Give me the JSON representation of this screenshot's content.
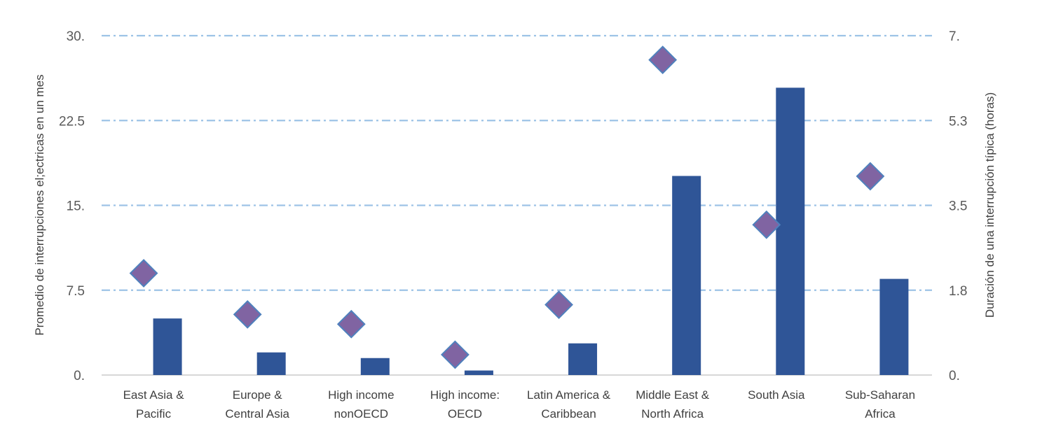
{
  "chart_data": {
    "type": "bar",
    "categories": [
      [
        "East Asia &",
        "Pacific"
      ],
      [
        "Europe &",
        "Central Asia"
      ],
      [
        "High income",
        "nonOECD"
      ],
      [
        "High income:",
        "OECD"
      ],
      [
        "Latin America &",
        "Caribbean"
      ],
      [
        "Middle East &",
        "North Africa"
      ],
      [
        "South Asia"
      ],
      [
        "Sub-Saharan",
        "Africa"
      ]
    ],
    "series": [
      {
        "name": "Promedio de interrupciones eléctricas en un mes",
        "type": "bar",
        "axis": "left",
        "color": "#2F5597",
        "values": [
          5.0,
          2.0,
          1.5,
          0.4,
          2.8,
          17.6,
          25.4,
          8.5
        ]
      },
      {
        "name": "Duración de una interrupción típica (horas)",
        "type": "scatter",
        "marker": "diamond",
        "axis": "right",
        "color": "#8064A2",
        "edge_color": "#4F81BD",
        "values": [
          2.1,
          1.25,
          1.05,
          0.42,
          1.45,
          6.5,
          3.1,
          4.1
        ]
      }
    ],
    "y_left": {
      "label": "Promedio de interrupciones el;ectricas en un mes",
      "lim": [
        0,
        30
      ],
      "ticks": [
        0,
        7.5,
        15,
        22.5,
        30
      ],
      "tick_labels": [
        "0.",
        "7.5",
        "15.",
        "22.5",
        "30."
      ]
    },
    "y_right": {
      "label": "Duración de una interrupción típica (horas)",
      "lim": [
        0,
        7
      ],
      "ticks": [
        0,
        1.75,
        3.5,
        5.25,
        7
      ],
      "tick_labels": [
        "0.",
        "1.8",
        "3.5",
        "5.3",
        "7."
      ]
    },
    "gridlines": true,
    "grid_color": "#9DC3E6"
  }
}
